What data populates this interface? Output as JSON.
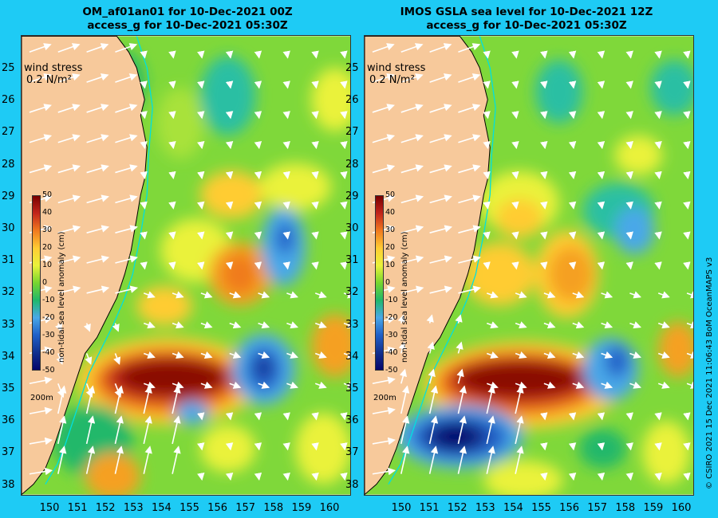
{
  "panels": [
    {
      "title_line1": "OM_af01an01 for 10-Dec-2021 00Z",
      "title_line2": "access_g for 10-Dec-2021 05:30Z",
      "wind_stress_label": "wind stress",
      "wind_stress_scale": "0.2 N/m²",
      "depth_label": "200m",
      "colorbar_title": "non-tidal sea level anomaly (cm)"
    },
    {
      "title_line1": "IMOS GSLA sea level  for 10-Dec-2021 12Z",
      "title_line2": "access_g for 10-Dec-2021 05:30Z",
      "wind_stress_label": "wind stress",
      "wind_stress_scale": "0.2 N/m²",
      "depth_label": "200m",
      "colorbar_title": "non-tidal sea level anomaly (cm)"
    }
  ],
  "axes": {
    "latitude_ticks": [
      "25",
      "26",
      "27",
      "28",
      "29",
      "30",
      "31",
      "32",
      "33",
      "34",
      "35",
      "36",
      "37",
      "38"
    ],
    "longitude_ticks": [
      "150",
      "151",
      "152",
      "153",
      "154",
      "155",
      "156",
      "157",
      "158",
      "159",
      "160"
    ]
  },
  "colorbar": {
    "ticks": [
      "50",
      "40",
      "30",
      "20",
      "10",
      "0",
      "-10",
      "-20",
      "-30",
      "-40",
      "-50"
    ],
    "colors": [
      "#7a0000",
      "#c3251b",
      "#f07a1f",
      "#ffcc33",
      "#eaf23a",
      "#77d62f",
      "#20b86b",
      "#4aa8e8",
      "#2060c8",
      "#12318f",
      "#05056b"
    ]
  },
  "credit": "© CSIRO 2021  15 Dec 2021 11:06:43 BoM OceanMAPS v3",
  "colors": {
    "background": "#1ecbf5",
    "land": "#f7c99b",
    "sea_base": "#7fd83a"
  }
}
